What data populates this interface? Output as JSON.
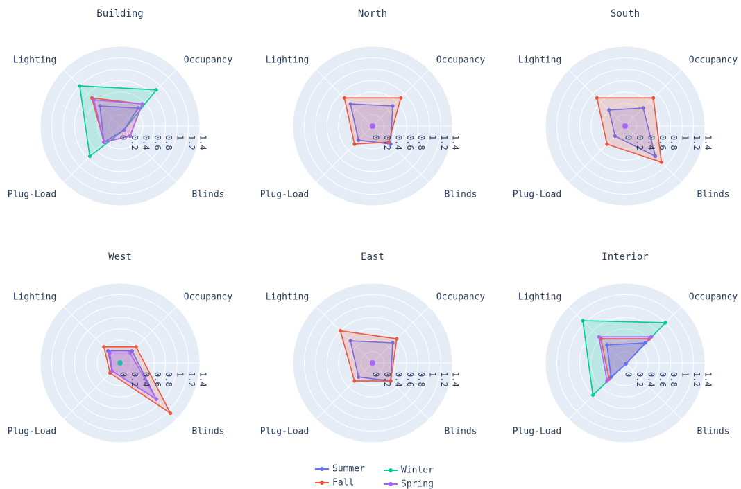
{
  "chart_data": {
    "type": "radar",
    "axes": [
      "Occupancy",
      "Blinds",
      "Plug-Load",
      "Lighting"
    ],
    "radial_ticks": [
      "0",
      "0.2",
      "0.4",
      "0.6",
      "0.8",
      "1",
      "1.2",
      "1.4"
    ],
    "radial_range": [
      0,
      1.4
    ],
    "series_colors": {
      "Summer": "#636efa",
      "Fall": "#ef553b",
      "Winter": "#00cc96",
      "Spring": "#ab63fa"
    },
    "legend": [
      {
        "name": "Summer"
      },
      {
        "name": "Fall"
      },
      {
        "name": "Winter"
      },
      {
        "name": "Spring"
      }
    ],
    "panels": [
      {
        "title": "Building",
        "series": [
          {
            "name": "Winter",
            "values": [
              0.9,
              0.1,
              0.75,
              1.0
            ]
          },
          {
            "name": "Summer",
            "values": [
              0.45,
              0.1,
              0.4,
              0.5
            ]
          },
          {
            "name": "Fall",
            "values": [
              0.55,
              0.25,
              0.4,
              0.7
            ]
          },
          {
            "name": "Spring",
            "values": [
              0.55,
              0.25,
              0.4,
              0.65
            ]
          }
        ]
      },
      {
        "title": "North",
        "series": [
          {
            "name": "Summer",
            "values": [
              0.5,
              0.45,
              0.35,
              0.55
            ]
          },
          {
            "name": "Fall",
            "values": [
              0.7,
              0.4,
              0.45,
              0.7
            ]
          },
          {
            "name": "Winter",
            "values": [
              0.02,
              0.02,
              0.02,
              0.02
            ]
          },
          {
            "name": "Spring",
            "values": [
              0.02,
              0.02,
              0.02,
              0.02
            ]
          }
        ]
      },
      {
        "title": "South",
        "series": [
          {
            "name": "Summer",
            "values": [
              0.45,
              0.75,
              0.25,
              0.4
            ]
          },
          {
            "name": "Fall",
            "values": [
              0.7,
              0.9,
              0.45,
              0.7
            ]
          },
          {
            "name": "Winter",
            "values": [
              0.02,
              0.02,
              0.02,
              0.02
            ]
          },
          {
            "name": "Spring",
            "values": [
              0.02,
              0.02,
              0.02,
              0.02
            ]
          }
        ]
      },
      {
        "title": "West",
        "series": [
          {
            "name": "Summer",
            "values": [
              0.3,
              0.9,
              0.2,
              0.3
            ]
          },
          {
            "name": "Fall",
            "values": [
              0.4,
              1.25,
              0.25,
              0.4
            ]
          },
          {
            "name": "Winter",
            "values": [
              0.02,
              0.02,
              0.02,
              0.02
            ]
          },
          {
            "name": "Spring",
            "values": [
              0.25,
              0.9,
              0.2,
              0.25
            ]
          }
        ]
      },
      {
        "title": "East",
        "series": [
          {
            "name": "Summer",
            "values": [
              0.5,
              0.45,
              0.35,
              0.55
            ]
          },
          {
            "name": "Fall",
            "values": [
              0.6,
              0.45,
              0.45,
              0.8
            ]
          },
          {
            "name": "Winter",
            "values": [
              0.02,
              0.02,
              0.02,
              0.02
            ]
          },
          {
            "name": "Spring",
            "values": [
              0.02,
              0.02,
              0.02,
              0.02
            ]
          }
        ]
      },
      {
        "title": "Interior",
        "series": [
          {
            "name": "Winter",
            "values": [
              1.0,
              0.02,
              0.8,
              1.05
            ]
          },
          {
            "name": "Fall",
            "values": [
              0.6,
              0.02,
              0.4,
              0.6
            ]
          },
          {
            "name": "Spring",
            "values": [
              0.65,
              0.02,
              0.45,
              0.65
            ]
          },
          {
            "name": "Summer",
            "values": [
              0.5,
              0.02,
              0.35,
              0.45
            ]
          }
        ]
      }
    ]
  }
}
